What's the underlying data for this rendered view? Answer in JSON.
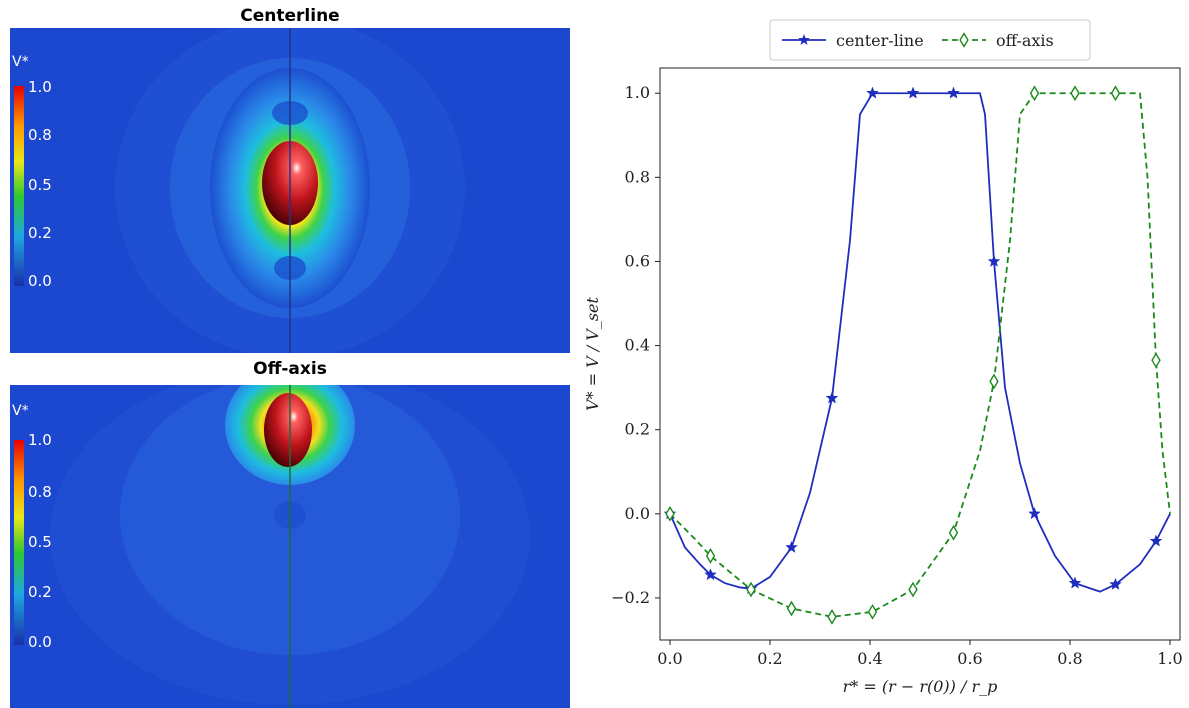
{
  "panels": {
    "top": {
      "title": "Centerline",
      "colorbar_title": "V*",
      "colorbar_ticks": [
        "1.0",
        "0.8",
        "0.5",
        "0.2",
        "0.0"
      ]
    },
    "bottom": {
      "title": "Off-axis",
      "colorbar_title": "V*",
      "colorbar_ticks": [
        "1.0",
        "0.8",
        "0.5",
        "0.2",
        "0.0"
      ]
    }
  },
  "colors": {
    "background_field": "#1a44c8",
    "center_line": "#1f2dbf",
    "off_axis": "#1a8a1a",
    "particle": "#c0141c"
  },
  "chart_data": {
    "type": "line",
    "xlabel": "r* = (r − r(0)) / r_p",
    "ylabel": "V* = V / V_set",
    "xlim": [
      -0.02,
      1.02
    ],
    "ylim": [
      -0.3,
      1.06
    ],
    "xticks": [
      "0.0",
      "0.2",
      "0.4",
      "0.6",
      "0.8",
      "1.0"
    ],
    "yticks": [
      "−0.2",
      "0.0",
      "0.2",
      "0.4",
      "0.6",
      "0.8",
      "1.0"
    ],
    "legend": "top-center",
    "series": [
      {
        "name": "center-line",
        "style": "solid",
        "marker": "star",
        "color": "#1f2dbf",
        "x": [
          0.0,
          0.03,
          0.06,
          0.081,
          0.11,
          0.14,
          0.162,
          0.2,
          0.243,
          0.28,
          0.324,
          0.36,
          0.38,
          0.405,
          0.486,
          0.567,
          0.62,
          0.63,
          0.648,
          0.67,
          0.7,
          0.729,
          0.77,
          0.81,
          0.86,
          0.891,
          0.94,
          0.972,
          1.0
        ],
        "y": [
          0.0,
          -0.08,
          -0.12,
          -0.145,
          -0.165,
          -0.175,
          -0.178,
          -0.15,
          -0.08,
          0.05,
          0.275,
          0.65,
          0.95,
          1.0,
          1.0,
          1.0,
          1.0,
          0.95,
          0.6,
          0.3,
          0.12,
          0.0,
          -0.1,
          -0.165,
          -0.185,
          -0.168,
          -0.12,
          -0.065,
          0.0
        ]
      },
      {
        "name": "off-axis",
        "style": "dashed",
        "marker": "diamond",
        "color": "#1a8a1a",
        "x": [
          0.0,
          0.05,
          0.081,
          0.162,
          0.243,
          0.324,
          0.405,
          0.486,
          0.567,
          0.62,
          0.648,
          0.68,
          0.7,
          0.729,
          0.81,
          0.891,
          0.94,
          0.955,
          0.972,
          0.985,
          1.0
        ],
        "y": [
          0.0,
          -0.06,
          -0.1,
          -0.18,
          -0.225,
          -0.245,
          -0.233,
          -0.18,
          -0.045,
          0.15,
          0.315,
          0.65,
          0.95,
          1.0,
          1.0,
          1.0,
          1.0,
          0.8,
          0.365,
          0.15,
          0.0
        ]
      }
    ],
    "markers": {
      "center-line": [
        0,
        3,
        6,
        8,
        10,
        13,
        14,
        15,
        18,
        21,
        23,
        25,
        27
      ],
      "off-axis": [
        0,
        2,
        3,
        4,
        5,
        6,
        7,
        8,
        10,
        13,
        14,
        15,
        18
      ]
    }
  }
}
